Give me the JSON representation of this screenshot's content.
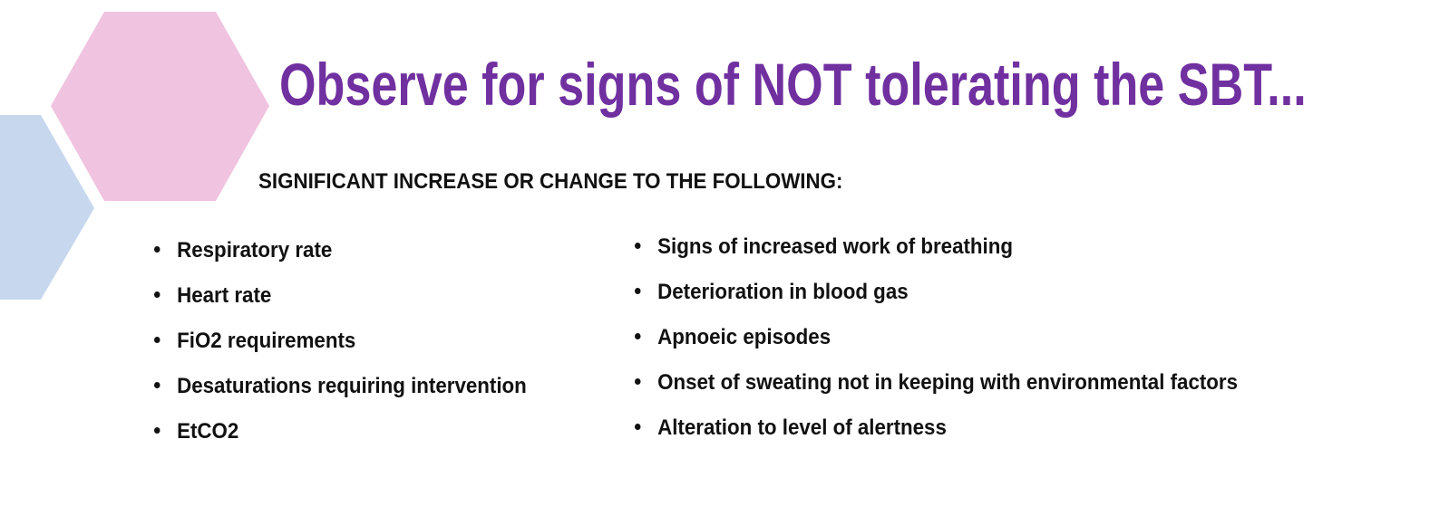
{
  "slide": {
    "title": "Observe for signs of NOT tolerating the SBT...",
    "subtitle": "SIGNIFICANT INCREASE OR CHANGE TO THE FOLLOWING:",
    "colors": {
      "title": "#7030a0",
      "hex_pink": "#f0c3e0",
      "hex_blue": "#c7d8ee"
    },
    "left_items": [
      "Respiratory rate",
      "Heart rate",
      "FiO2 requirements",
      "Desaturations requiring intervention",
      "EtCO2"
    ],
    "right_items": [
      "Signs of increased work of breathing",
      "Deterioration in blood gas",
      "Apnoeic episodes",
      "Onset of sweating not in keeping with environmental factors",
      "Alteration to level of alertness"
    ]
  }
}
